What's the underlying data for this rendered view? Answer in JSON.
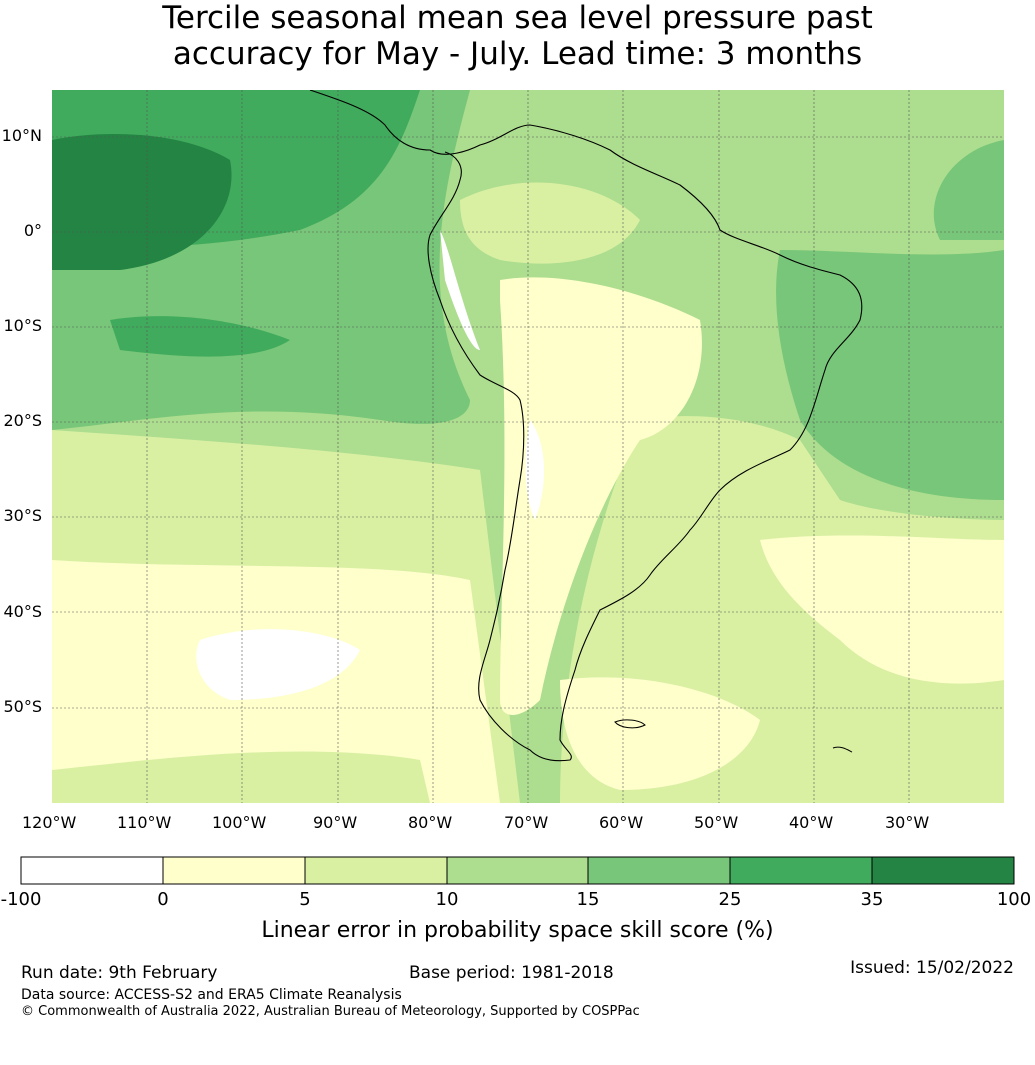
{
  "title": {
    "line1": "Tercile seasonal mean sea level pressure past",
    "line2": "accuracy for May - July. Lead time: 3 months"
  },
  "map": {
    "lat_labels": [
      "10°N",
      "0°",
      "10°S",
      "20°S",
      "30°S",
      "40°S",
      "50°S"
    ],
    "lon_labels": [
      "120°W",
      "110°W",
      "100°W",
      "90°W",
      "80°W",
      "70°W",
      "60°W",
      "50°W",
      "40°W",
      "30°W"
    ],
    "extent": {
      "lon_min": -120,
      "lon_max": -20,
      "lat_min": -60,
      "lat_max": 15
    }
  },
  "legend": {
    "ticks": [
      "-100",
      "0",
      "5",
      "10",
      "15",
      "25",
      "35",
      "100"
    ],
    "colors": [
      "#ffffff",
      "#ffffcc",
      "#d9f0a3",
      "#addd8e",
      "#78c679",
      "#41ab5d",
      "#238443"
    ],
    "label": "Linear error in probability space skill score (%)"
  },
  "footer": {
    "run_date": "Run date: 9th February",
    "base_period": "Base period: 1981-2018",
    "issued": "Issued: 15/02/2022",
    "data_source": "Data source: ACCESS-S2 and ERA5 Climate Reanalysis",
    "copyright": "© Commonwealth of Australia 2022, Australian Bureau of Meteorology, Supported by COSPPac"
  }
}
